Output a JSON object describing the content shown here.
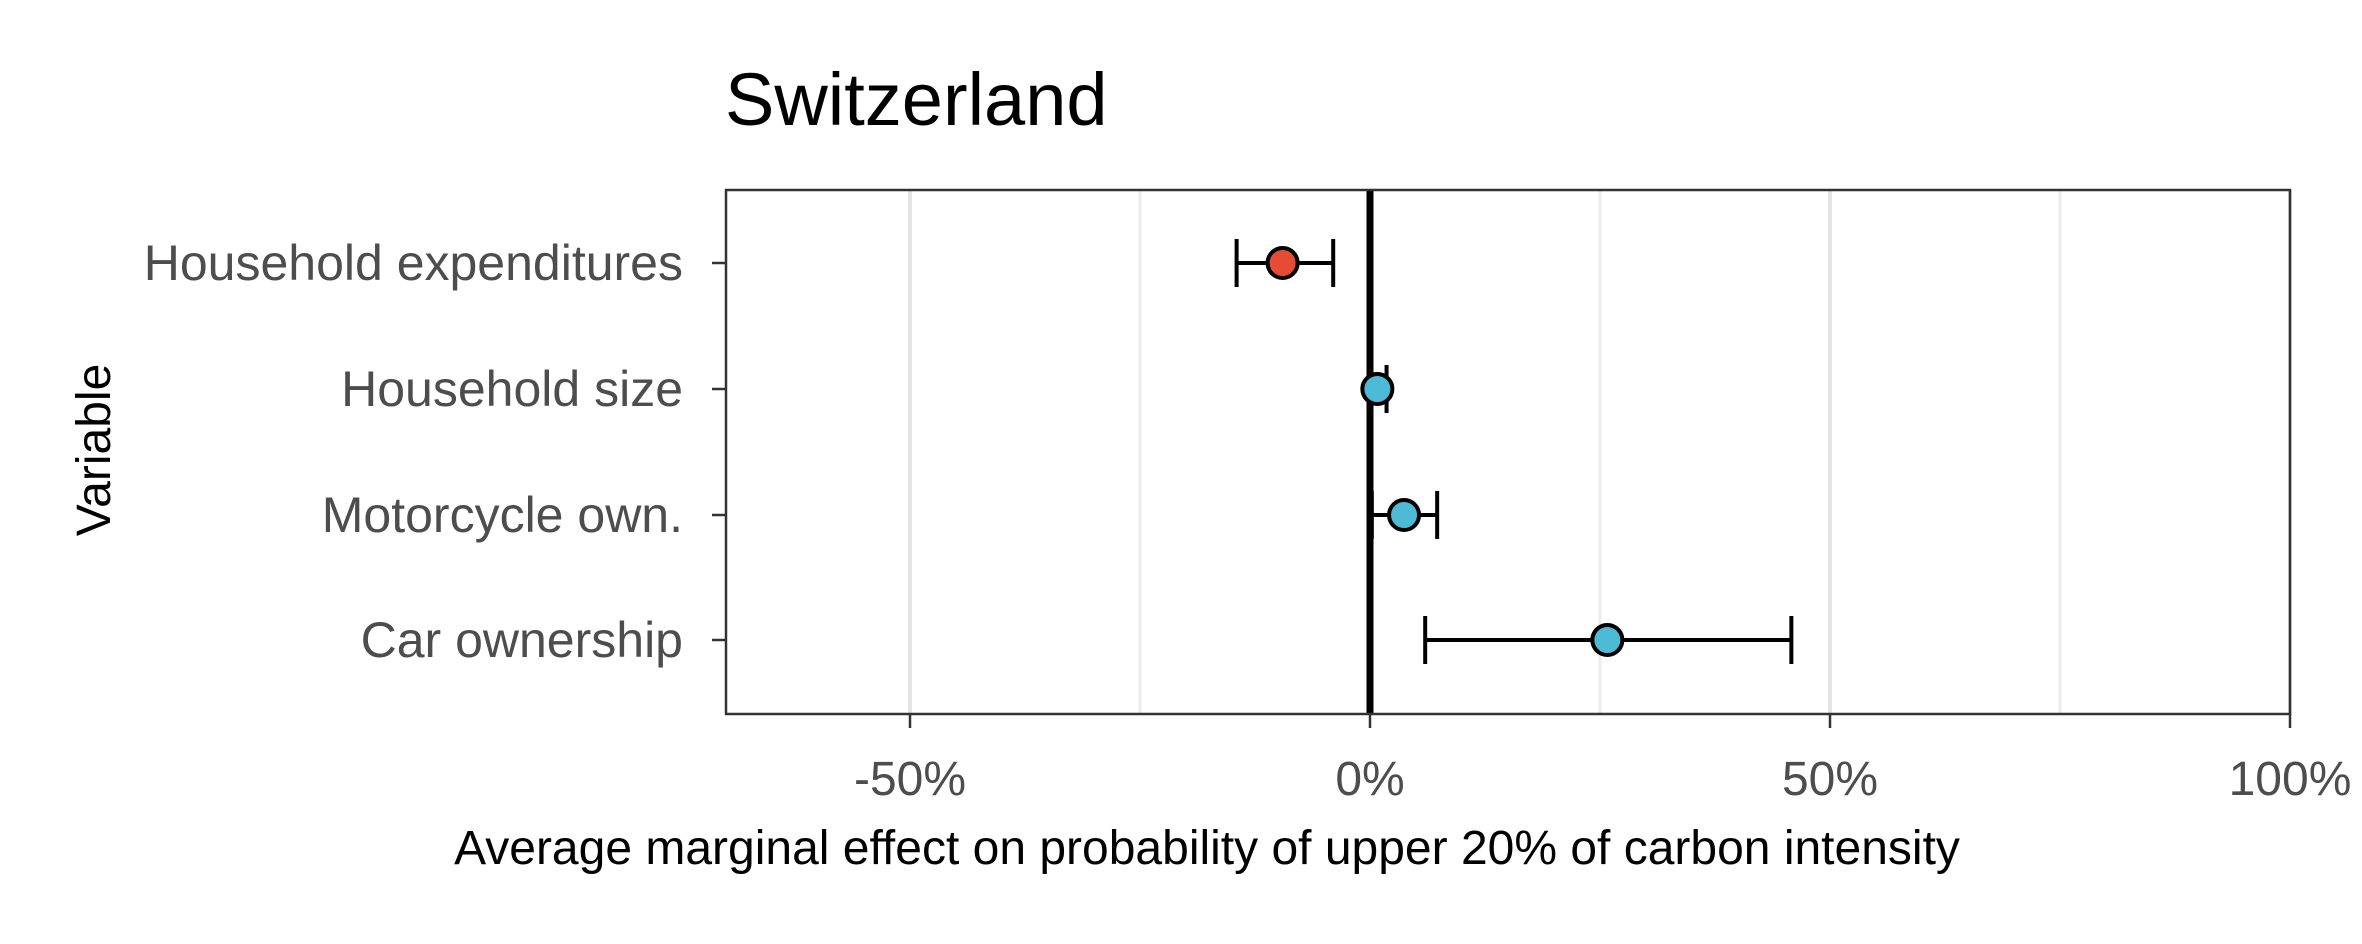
{
  "chart_data": {
    "type": "scatter",
    "subtype": "coefficient-plot",
    "title": "Switzerland",
    "xlabel": "Average marginal effect on probability of upper 20% of carbon intensity",
    "ylabel": "Variable",
    "xlim": [
      -70,
      100
    ],
    "xticks": [
      -50,
      0,
      50,
      100
    ],
    "xtick_labels": [
      "-50%",
      "0%",
      "50%",
      "100%"
    ],
    "x_unit": "percent",
    "grid": true,
    "reference_line_x": 0,
    "categories": [
      "Household expenditures",
      "Household size",
      "Motorcycle own.",
      "Car ownership"
    ],
    "points": [
      {
        "label": "Household expenditures",
        "estimate": -9.5,
        "ci_low": -14.5,
        "ci_high": -4.0,
        "color": "#E64B35"
      },
      {
        "label": "Household size",
        "estimate": 0.8,
        "ci_low": 0.0,
        "ci_high": 1.8,
        "color": "#4DBBD5"
      },
      {
        "label": "Motorcycle own.",
        "estimate": 3.7,
        "ci_low": 0.2,
        "ci_high": 7.3,
        "color": "#4DBBD5"
      },
      {
        "label": "Car ownership",
        "estimate": 25.8,
        "ci_low": 6.0,
        "ci_high": 45.8,
        "color": "#4DBBD5"
      }
    ]
  }
}
